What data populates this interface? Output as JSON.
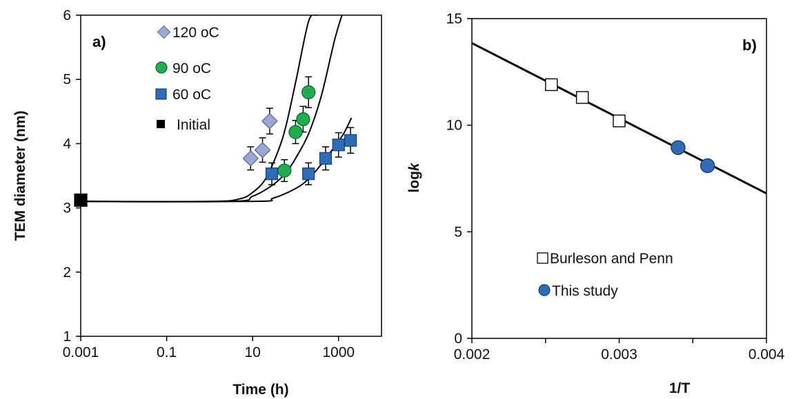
{
  "chart_data": [
    {
      "type": "scatter",
      "panel_label": "a)",
      "xlabel": "Time (h)",
      "ylabel": "TEM diameter (nm)",
      "xscale": "log",
      "xlim": [
        0.001,
        10000
      ],
      "ylim": [
        1,
        6
      ],
      "x_ticks": [
        0.001,
        0.1,
        10,
        1000
      ],
      "x_tick_labels": [
        "0.001",
        "0.1",
        "10",
        "1000"
      ],
      "y_ticks": [
        1,
        2,
        3,
        4,
        5,
        6
      ],
      "y_tick_labels": [
        "1",
        "2",
        "3",
        "4",
        "5",
        "6"
      ],
      "grid": false,
      "legend_position": "top-left",
      "series": [
        {
          "name": "120 oC",
          "marker": "diamond",
          "color": "#9aa8d4",
          "x": [
            9,
            17,
            25
          ],
          "y": [
            3.77,
            3.9,
            4.35
          ],
          "err": [
            0.18,
            0.19,
            0.2
          ]
        },
        {
          "name": "90 oC",
          "marker": "circle",
          "color": "#1fae4f",
          "x": [
            55,
            100,
            150,
            200
          ],
          "y": [
            3.58,
            4.18,
            4.38,
            4.8
          ],
          "err": [
            0.17,
            0.18,
            0.2,
            0.24
          ]
        },
        {
          "name": "60 oC",
          "marker": "square",
          "color": "#2f6cb8",
          "x": [
            28,
            200,
            500,
            1000,
            1900
          ],
          "y": [
            3.53,
            3.53,
            3.77,
            3.98,
            4.05
          ],
          "err": [
            0.17,
            0.17,
            0.18,
            0.19,
            0.2
          ]
        },
        {
          "name": "Initial",
          "marker": "square",
          "color": "#000000",
          "x": [
            0.001
          ],
          "y": [
            3.12
          ],
          "err": []
        }
      ],
      "fit_curves": [
        {
          "series": "120 oC",
          "x": [
            0.001,
            1,
            5,
            10,
            20,
            40,
            60,
            100,
            200,
            300
          ],
          "y": [
            3.1,
            3.1,
            3.14,
            3.24,
            3.45,
            3.9,
            4.28,
            4.95,
            5.9,
            6.0
          ]
        },
        {
          "series": "90 oC",
          "x": [
            0.001,
            3,
            10,
            30,
            60,
            100,
            200,
            400,
            800,
            1200
          ],
          "y": [
            3.1,
            3.1,
            3.18,
            3.36,
            3.55,
            3.77,
            4.15,
            4.75,
            5.6,
            6.0
          ]
        },
        {
          "series": "60 oC",
          "x": [
            0.001,
            10,
            30,
            100,
            200,
            400,
            800,
            1300,
            2000
          ],
          "y": [
            3.1,
            3.1,
            3.15,
            3.3,
            3.45,
            3.68,
            3.95,
            4.15,
            4.4
          ]
        }
      ]
    },
    {
      "type": "scatter",
      "panel_label": "b)",
      "xlabel": "1/T",
      "ylabel": "log",
      "ylabel_italic": "k",
      "xlim": [
        0.002,
        0.004
      ],
      "ylim": [
        0,
        15
      ],
      "x_ticks": [
        0.002,
        0.003,
        0.004
      ],
      "x_tick_labels": [
        "0.002",
        "0.003",
        "0.004"
      ],
      "y_ticks": [
        0,
        5,
        10,
        15
      ],
      "y_tick_labels": [
        "0",
        "5",
        "10",
        "15"
      ],
      "grid": false,
      "legend_position": "bottom-center",
      "series": [
        {
          "name": "Burleson and Penn",
          "marker": "open-square",
          "color": "#000000",
          "x": [
            0.00254,
            0.00275,
            0.003
          ],
          "y": [
            11.9,
            11.3,
            10.2
          ]
        },
        {
          "name": "This study",
          "marker": "circle",
          "color": "#2f6cb8",
          "x": [
            0.0034,
            0.0036
          ],
          "y": [
            8.95,
            8.1
          ]
        }
      ],
      "fit_line": {
        "x": [
          0.002,
          0.004
        ],
        "y": [
          13.85,
          6.8
        ]
      }
    }
  ]
}
